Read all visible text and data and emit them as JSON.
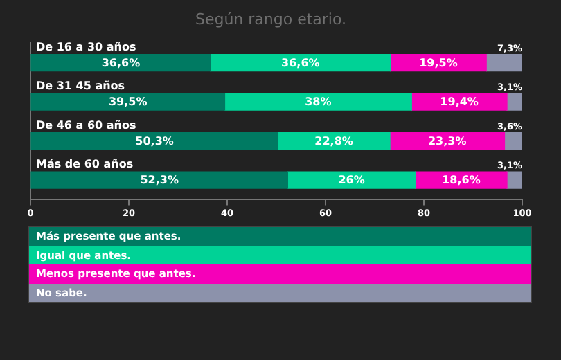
{
  "chart_data": {
    "type": "bar",
    "orientation": "horizontal",
    "stacked": true,
    "title": "Según rango etario.",
    "categories": [
      "De 16 a 30 años",
      "De 31 45 años",
      "De 46 a 60 años",
      "Más de 60 años"
    ],
    "series": [
      {
        "name": "Más presente que antes.",
        "color": "#007a62",
        "values": [
          36.6,
          39.5,
          50.3,
          52.3
        ],
        "value_labels": [
          "36,6%",
          "39,5%",
          "50,3%",
          "52,3%"
        ]
      },
      {
        "name": "Igual que antes.",
        "color": "#00d296",
        "values": [
          36.6,
          38,
          22.8,
          26
        ],
        "value_labels": [
          "36,6%",
          "38%",
          "22,8%",
          "26%"
        ]
      },
      {
        "name": "Menos presente que antes.",
        "color": "#f500b8",
        "values": [
          19.5,
          19.4,
          23.3,
          18.6
        ],
        "value_labels": [
          "19,5%",
          "19,4%",
          "23,3%",
          "18,6%"
        ]
      },
      {
        "name": "No sabe.",
        "color": "#8c92ab",
        "values": [
          7.3,
          3.1,
          3.6,
          3.1
        ],
        "value_labels": [
          "7,3%",
          "3,1%",
          "3,6%",
          "3,1%"
        ]
      }
    ],
    "xlim": [
      0,
      100
    ],
    "xticks": [
      0,
      20,
      40,
      60,
      80,
      100
    ],
    "grid": false,
    "legend": "bottom"
  }
}
